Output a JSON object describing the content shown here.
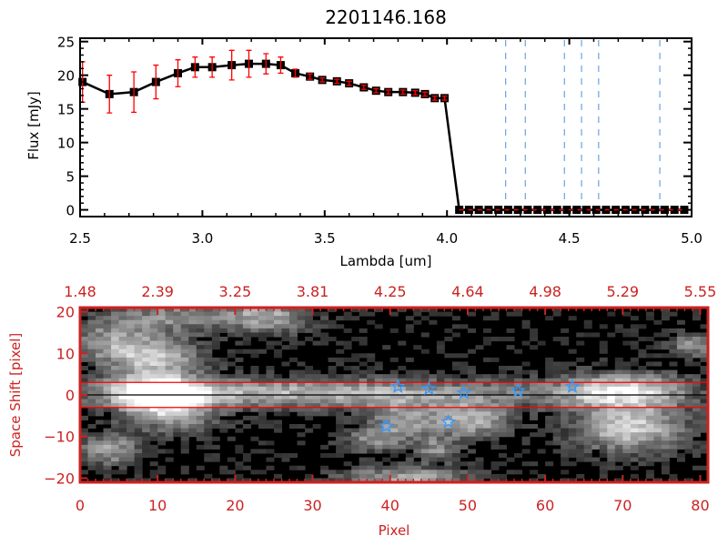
{
  "chart_data": [
    {
      "type": "line",
      "title": "2201146.168",
      "xlabel": "Lambda [um]",
      "ylabel": "Flux [mJy]",
      "xlim": [
        2.5,
        5.0
      ],
      "ylim": [
        -1,
        25.5
      ],
      "xticks": [
        "2.5",
        "3.0",
        "3.5",
        "4.0",
        "4.5",
        "5.0"
      ],
      "yticks": [
        "0",
        "5",
        "10",
        "15",
        "20",
        "25"
      ],
      "series": [
        {
          "x": [
            2.51,
            2.62,
            2.72,
            2.81,
            2.9,
            2.97,
            3.04,
            3.12,
            3.19,
            3.26,
            3.32,
            3.38,
            3.44,
            3.49,
            3.55,
            3.6,
            3.66,
            3.71,
            3.76,
            3.82,
            3.87,
            3.91,
            3.95,
            3.99,
            4.05,
            4.09,
            4.13,
            4.17,
            4.21,
            4.25,
            4.29,
            4.33,
            4.37,
            4.41,
            4.45,
            4.49,
            4.53,
            4.57,
            4.61,
            4.65,
            4.69,
            4.73,
            4.77,
            4.81,
            4.85,
            4.89,
            4.93,
            4.97
          ],
          "y": [
            19.0,
            17.2,
            17.5,
            19.0,
            20.3,
            21.2,
            21.2,
            21.5,
            21.7,
            21.7,
            21.5,
            20.3,
            19.8,
            19.3,
            19.1,
            18.8,
            18.2,
            17.7,
            17.5,
            17.5,
            17.4,
            17.2,
            16.6,
            16.6,
            0,
            0,
            0,
            0,
            0,
            0,
            0,
            0,
            0,
            0,
            0,
            0,
            0,
            0,
            0,
            0,
            0,
            0,
            0,
            0,
            0,
            0,
            0,
            0
          ],
          "yerr": [
            3.0,
            2.8,
            3.0,
            2.5,
            2.0,
            1.5,
            1.5,
            2.2,
            2.0,
            1.5,
            1.2,
            0.6,
            0.4,
            0.3,
            0.3,
            0.3,
            0.3,
            0.3,
            0.3,
            0.3,
            0.3,
            0.3,
            0.3,
            0.3,
            0,
            0,
            0,
            0,
            0,
            0,
            0,
            0,
            0,
            0,
            0,
            0,
            0,
            0,
            0,
            0,
            0,
            0,
            0,
            0,
            0,
            0,
            0,
            0
          ]
        }
      ],
      "vlines": [
        4.24,
        4.32,
        4.48,
        4.55,
        4.62,
        4.87
      ],
      "hline": 0,
      "colors": {
        "line": "#000000",
        "errorbar": "#ff0000",
        "vlines": "#4a90d9",
        "hline": "#ff0000"
      }
    },
    {
      "type": "heatmap",
      "xlabel": "Pixel",
      "ylabel": "Space Shift [pixel]",
      "xlim": [
        0,
        81
      ],
      "ylim": [
        -21,
        21
      ],
      "xticks": [
        "0",
        "10",
        "20",
        "30",
        "40",
        "50",
        "60",
        "70",
        "80"
      ],
      "yticks": [
        "-20",
        "-10",
        "0",
        "10",
        "20"
      ],
      "top_xticks": [
        "1.48",
        "2.39",
        "3.25",
        "3.81",
        "4.25",
        "4.64",
        "4.98",
        "5.29",
        "5.55"
      ],
      "colormap": "grayscale",
      "features": [
        {
          "x": 10,
          "y": 0.5,
          "intensity": 1.0,
          "sx": 4,
          "sy": 3
        },
        {
          "x": 30,
          "y": 0.5,
          "intensity": 0.6,
          "sx": 22,
          "sy": 2.5
        },
        {
          "x": 70,
          "y": 1,
          "intensity": 0.7,
          "sx": 6,
          "sy": 3
        },
        {
          "x": 10,
          "y": 9,
          "intensity": 0.6,
          "sx": 4,
          "sy": 3
        },
        {
          "x": 4,
          "y": 13,
          "intensity": 0.45,
          "sx": 4,
          "sy": 4
        },
        {
          "x": 24,
          "y": 19,
          "intensity": 0.55,
          "sx": 4,
          "sy": 3
        },
        {
          "x": 12,
          "y": 19,
          "intensity": 0.4,
          "sx": 5,
          "sy": 3
        },
        {
          "x": 50,
          "y": -6,
          "intensity": 0.6,
          "sx": 4,
          "sy": 3
        },
        {
          "x": 41,
          "y": -6,
          "intensity": 0.45,
          "sx": 3,
          "sy": 3
        },
        {
          "x": 71,
          "y": -8,
          "intensity": 0.7,
          "sx": 5,
          "sy": 4
        },
        {
          "x": 4,
          "y": -13,
          "intensity": 0.5,
          "sx": 3,
          "sy": 3
        },
        {
          "x": 38,
          "y": -11,
          "intensity": 0.4,
          "sx": 3,
          "sy": 2
        },
        {
          "x": 46,
          "y": -13,
          "intensity": 0.4,
          "sx": 2,
          "sy": 2
        },
        {
          "x": 42,
          "y": -20,
          "intensity": 0.55,
          "sx": 6,
          "sy": 2
        },
        {
          "x": 79,
          "y": 12,
          "intensity": 0.5,
          "sx": 2,
          "sy": 2
        },
        {
          "x": 12,
          "y": -5,
          "intensity": 0.45,
          "sx": 4,
          "sy": 3
        }
      ],
      "stars": [
        {
          "x": 41,
          "y": 2
        },
        {
          "x": 45,
          "y": 1.5
        },
        {
          "x": 49.5,
          "y": 0.5
        },
        {
          "x": 56.5,
          "y": 1
        },
        {
          "x": 63.5,
          "y": 2
        },
        {
          "x": 39.5,
          "y": -7.5
        },
        {
          "x": 47.5,
          "y": -6.5
        }
      ],
      "hlines_red": [
        3,
        -3
      ],
      "hline_black": 0,
      "colors": {
        "axes": "#cc2222",
        "stars": "#3399ff",
        "hlines_red": "#ff0000"
      }
    }
  ]
}
